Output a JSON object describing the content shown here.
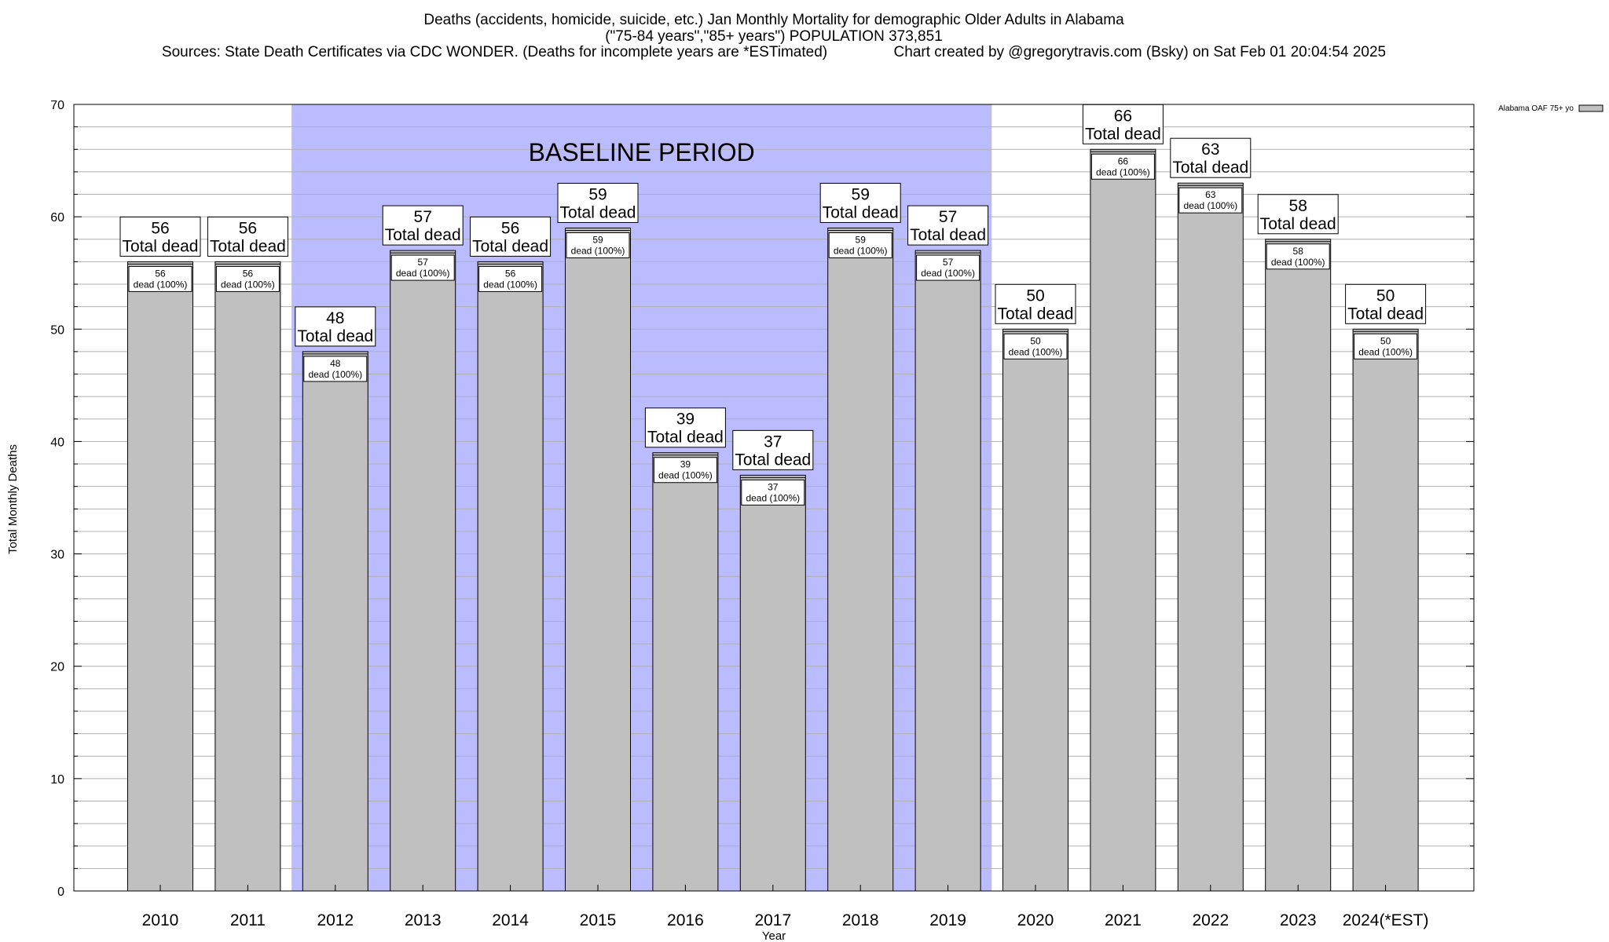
{
  "title_lines": [
    "Deaths (accidents, homicide, suicide, etc.) Jan Monthly Mortality for demographic Older Adults in Alabama",
    "(\"75-84 years\",\"85+ years\") POPULATION 373,851",
    "Sources: State Death Certificates via CDC WONDER. (Deaths for incomplete years are *ESTimated)                Chart created by @gregorytravis.com (Bsky) on Sat Feb 01 20:04:54 2025"
  ],
  "colors": {
    "bar_fill": "#c0c0c0",
    "bar_stroke": "#000000",
    "baseline_fill": "#bbbbff",
    "grid": "#b0b0b0",
    "label_box": "#ffffff"
  },
  "chart_data": {
    "type": "bar",
    "title": "Deaths (accidents, homicide, suicide, etc.) Jan Monthly Mortality for demographic Older Adults in Alabama",
    "subtitle": "(\"75-84 years\",\"85+ years\") POPULATION 373,851",
    "xlabel": "Year",
    "ylabel": "Total Monthly Deaths",
    "ylim": [
      0,
      70
    ],
    "yticks": [
      0,
      10,
      20,
      30,
      40,
      50,
      60,
      70
    ],
    "y_minor_step": 2,
    "grid": true,
    "legend_position": "top-right",
    "categories": [
      "2010",
      "2011",
      "2012",
      "2013",
      "2014",
      "2015",
      "2016",
      "2017",
      "2018",
      "2019",
      "2020",
      "2021",
      "2022",
      "2023",
      "2024(*EST)"
    ],
    "series": [
      {
        "name": "Alabama OAF 75+ yo",
        "values": [
          56,
          56,
          48,
          57,
          56,
          59,
          39,
          37,
          59,
          57,
          50,
          66,
          63,
          58,
          50
        ]
      }
    ],
    "top_label_text": "Total dead",
    "inner_label_text": "dead (100%)",
    "baseline_period": {
      "label": "BASELINE PERIOD",
      "start": "2012",
      "end": "2019"
    }
  }
}
